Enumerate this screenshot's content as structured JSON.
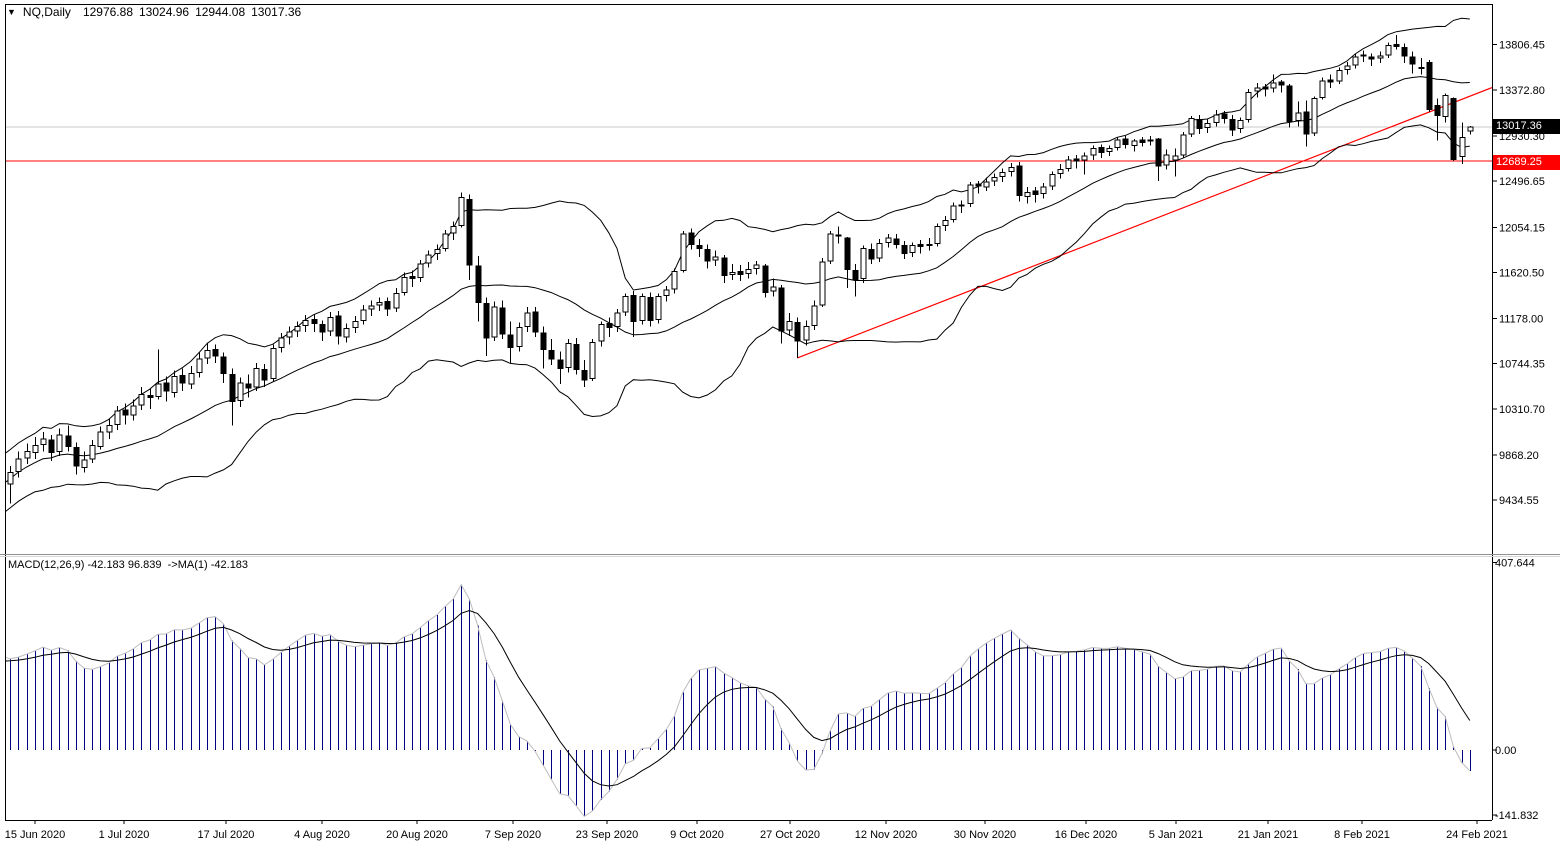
{
  "title": {
    "symbol": "NQ,Daily",
    "open": "12976.88",
    "high": "13024.96",
    "low": "12944.08",
    "close": "13017.36"
  },
  "macd_label": {
    "name": "MACD(12,26,9)",
    "main": "-42.183",
    "signal": "96.839",
    "ma": "->MA(1)",
    "ma_value": "-42.183"
  },
  "price_axis": {
    "current_badge": "13017.36",
    "alert_badge": "12689.25",
    "tick_labels": [
      "13806.45",
      "13372.80",
      "12930.30",
      "12496.65",
      "12054.15",
      "11620.50",
      "11178.00",
      "10744.35",
      "10310.70",
      "9868.20",
      "9434.55"
    ],
    "tick_values": [
      13806.45,
      13372.8,
      12930.3,
      12496.65,
      12054.15,
      11620.5,
      11178.0,
      10744.35,
      10310.7,
      9868.2,
      9434.55
    ]
  },
  "macd_axis": {
    "tick_labels": [
      "407.644",
      "0.00",
      "-141.832"
    ],
    "tick_values": [
      407.644,
      0,
      -141.832
    ]
  },
  "date_axis": {
    "labels": [
      "15 Jun 2020",
      "1 Jul 2020",
      "17 Jul 2020",
      "4 Aug 2020",
      "20 Aug 2020",
      "7 Sep 2020",
      "23 Sep 2020",
      "9 Oct 2020",
      "27 Oct 2020",
      "12 Nov 2020",
      "30 Nov 2020",
      "16 Dec 2020",
      "5 Jan 2021",
      "21 Jan 2021",
      "8 Feb 2021",
      "24 Feb 2021"
    ]
  },
  "colors": {
    "bull": "#ffffff",
    "bear": "#000000",
    "outline": "#000000",
    "band": "#000000",
    "trend": "#ff0000",
    "alert_line": "#ff0000",
    "price_line": "#c8c8c8",
    "hist": "#000080",
    "macd_line": "#bdbdbd",
    "signal_line": "#000000",
    "badge_current_bg": "#000000",
    "badge_alert_bg": "#ff0000"
  },
  "chart_data": {
    "type": "candlestick",
    "symbol": "NQ",
    "timeframe": "Daily",
    "ylim_main": [
      8927,
      14197
    ],
    "ylim_macd": [
      -152.2,
      415.2
    ],
    "grid": "off",
    "overlays": {
      "bollinger": {
        "period": 20,
        "deviation": 2
      },
      "current_price_line": 13017.36,
      "alert_price_line": 12689.25,
      "trendline": {
        "from_bar": 97,
        "from_price": 10800,
        "to_price": 13395
      }
    },
    "macd": {
      "fast": 12,
      "slow": 26,
      "signal_period": 9,
      "display_main": -42.183,
      "display_signal": 96.839
    },
    "ohlc": [
      [
        9200,
        9620,
        9150,
        9580
      ],
      [
        9590,
        9760,
        9400,
        9700
      ],
      [
        9710,
        9900,
        9650,
        9830
      ],
      [
        9840,
        9980,
        9780,
        9900
      ],
      [
        9890,
        10040,
        9830,
        9960
      ],
      [
        9970,
        10090,
        9900,
        10020
      ],
      [
        10010,
        10060,
        9810,
        9890
      ],
      [
        9900,
        10120,
        9860,
        10060
      ],
      [
        10050,
        10150,
        9900,
        9950
      ],
      [
        9940,
        9990,
        9680,
        9760
      ],
      [
        9750,
        9900,
        9700,
        9820
      ],
      [
        9830,
        10010,
        9790,
        9960
      ],
      [
        9950,
        10140,
        9920,
        10090
      ],
      [
        10090,
        10220,
        10020,
        10150
      ],
      [
        10160,
        10340,
        10110,
        10290
      ],
      [
        10300,
        10360,
        10160,
        10250
      ],
      [
        10250,
        10400,
        10200,
        10340
      ],
      [
        10350,
        10520,
        10300,
        10450
      ],
      [
        10440,
        10500,
        10310,
        10420
      ],
      [
        10430,
        10880,
        10400,
        10550
      ],
      [
        10560,
        10620,
        10380,
        10480
      ],
      [
        10470,
        10680,
        10420,
        10620
      ],
      [
        10630,
        10700,
        10480,
        10560
      ],
      [
        10550,
        10720,
        10500,
        10650
      ],
      [
        10660,
        10850,
        10610,
        10790
      ],
      [
        10800,
        10950,
        10740,
        10870
      ],
      [
        10880,
        10930,
        10750,
        10820
      ],
      [
        10810,
        10850,
        10560,
        10650
      ],
      [
        10640,
        10700,
        10150,
        10380
      ],
      [
        10390,
        10610,
        10330,
        10560
      ],
      [
        10550,
        10640,
        10420,
        10510
      ],
      [
        10520,
        10750,
        10480,
        10700
      ],
      [
        10690,
        10740,
        10520,
        10590
      ],
      [
        10600,
        10930,
        10570,
        10890
      ],
      [
        10900,
        11040,
        10850,
        10990
      ],
      [
        11000,
        11100,
        10930,
        11050
      ],
      [
        11060,
        11150,
        11000,
        11100
      ],
      [
        11110,
        11210,
        11050,
        11160
      ],
      [
        11170,
        11220,
        11050,
        11130
      ],
      [
        11120,
        11160,
        10960,
        11050
      ],
      [
        11060,
        11240,
        11010,
        11190
      ],
      [
        11200,
        11250,
        10930,
        11010
      ],
      [
        11000,
        11130,
        10950,
        11080
      ],
      [
        11090,
        11200,
        11040,
        11150
      ],
      [
        11160,
        11310,
        11120,
        11260
      ],
      [
        11270,
        11350,
        11200,
        11300
      ],
      [
        11310,
        11380,
        11250,
        11330
      ],
      [
        11340,
        11380,
        11200,
        11270
      ],
      [
        11280,
        11470,
        11240,
        11420
      ],
      [
        11430,
        11620,
        11400,
        11570
      ],
      [
        11580,
        11640,
        11480,
        11560
      ],
      [
        11570,
        11740,
        11530,
        11700
      ],
      [
        11710,
        11830,
        11670,
        11790
      ],
      [
        11800,
        11890,
        11740,
        11840
      ],
      [
        11850,
        12030,
        11820,
        11990
      ],
      [
        12000,
        12110,
        11930,
        12060
      ],
      [
        12070,
        12390,
        12050,
        12340
      ],
      [
        12320,
        12370,
        11550,
        11690
      ],
      [
        11680,
        11780,
        11150,
        11330
      ],
      [
        11320,
        11380,
        10820,
        10990
      ],
      [
        11000,
        11340,
        10960,
        11290
      ],
      [
        11280,
        11350,
        10980,
        11030
      ],
      [
        11020,
        11150,
        10750,
        10900
      ],
      [
        10910,
        11140,
        10860,
        11090
      ],
      [
        11100,
        11290,
        11050,
        11230
      ],
      [
        11240,
        11290,
        11000,
        11050
      ],
      [
        11040,
        11100,
        10700,
        10880
      ],
      [
        10870,
        10980,
        10730,
        10790
      ],
      [
        10780,
        10860,
        10550,
        10700
      ],
      [
        10710,
        10980,
        10660,
        10940
      ],
      [
        10930,
        10990,
        10640,
        10690
      ],
      [
        10680,
        10780,
        10520,
        10590
      ],
      [
        10600,
        10980,
        10580,
        10950
      ],
      [
        10960,
        11150,
        10910,
        11120
      ],
      [
        11130,
        11190,
        11000,
        11090
      ],
      [
        11100,
        11270,
        11050,
        11230
      ],
      [
        11240,
        11420,
        11200,
        11390
      ],
      [
        11400,
        11440,
        11000,
        11150
      ],
      [
        11160,
        11420,
        11120,
        11390
      ],
      [
        11380,
        11430,
        11100,
        11160
      ],
      [
        11170,
        11420,
        11130,
        11390
      ],
      [
        11400,
        11490,
        11340,
        11450
      ],
      [
        11460,
        11660,
        11420,
        11630
      ],
      [
        11640,
        12020,
        11620,
        11990
      ],
      [
        12000,
        12040,
        11840,
        11890
      ],
      [
        11880,
        11940,
        11770,
        11850
      ],
      [
        11840,
        11890,
        11660,
        11730
      ],
      [
        11740,
        11830,
        11680,
        11770
      ],
      [
        11760,
        11790,
        11520,
        11590
      ],
      [
        11600,
        11700,
        11550,
        11620
      ],
      [
        11630,
        11690,
        11540,
        11600
      ],
      [
        11610,
        11720,
        11560,
        11650
      ],
      [
        11660,
        11730,
        11600,
        11690
      ],
      [
        11680,
        11700,
        11380,
        11430
      ],
      [
        11440,
        11560,
        11390,
        11480
      ],
      [
        11470,
        11500,
        10940,
        11060
      ],
      [
        11070,
        11230,
        11010,
        11150
      ],
      [
        11140,
        11190,
        10800,
        10960
      ],
      [
        10970,
        11160,
        10920,
        11100
      ],
      [
        11110,
        11350,
        11070,
        11300
      ],
      [
        11310,
        11760,
        11290,
        11720
      ],
      [
        11730,
        12020,
        11700,
        11990
      ],
      [
        11970,
        12060,
        11900,
        11980
      ],
      [
        11950,
        11960,
        11470,
        11650
      ],
      [
        11640,
        11700,
        11390,
        11550
      ],
      [
        11560,
        11880,
        11520,
        11850
      ],
      [
        11840,
        11900,
        11700,
        11750
      ],
      [
        11760,
        11940,
        11720,
        11900
      ],
      [
        11910,
        11990,
        11860,
        11950
      ],
      [
        11940,
        11990,
        11850,
        11890
      ],
      [
        11880,
        11920,
        11750,
        11800
      ],
      [
        11810,
        11910,
        11770,
        11880
      ],
      [
        11890,
        11930,
        11800,
        11870
      ],
      [
        11880,
        11950,
        11830,
        11890
      ],
      [
        11900,
        12090,
        11870,
        12060
      ],
      [
        12070,
        12160,
        12020,
        12120
      ],
      [
        12130,
        12290,
        12100,
        12260
      ],
      [
        12260,
        12310,
        12190,
        12270
      ],
      [
        12280,
        12490,
        12250,
        12460
      ],
      [
        12470,
        12500,
        12380,
        12450
      ],
      [
        12440,
        12530,
        12400,
        12490
      ],
      [
        12500,
        12570,
        12450,
        12530
      ],
      [
        12540,
        12620,
        12490,
        12580
      ],
      [
        12590,
        12670,
        12540,
        12630
      ],
      [
        12640,
        12680,
        12300,
        12360
      ],
      [
        12350,
        12440,
        12280,
        12390
      ],
      [
        12400,
        12440,
        12290,
        12370
      ],
      [
        12380,
        12480,
        12330,
        12440
      ],
      [
        12450,
        12590,
        12410,
        12560
      ],
      [
        12570,
        12660,
        12520,
        12610
      ],
      [
        12620,
        12740,
        12590,
        12700
      ],
      [
        12710,
        12750,
        12620,
        12690
      ],
      [
        12700,
        12770,
        12560,
        12740
      ],
      [
        12750,
        12840,
        12700,
        12810
      ],
      [
        12820,
        12850,
        12720,
        12770
      ],
      [
        12780,
        12840,
        12740,
        12810
      ],
      [
        12820,
        12920,
        12790,
        12890
      ],
      [
        12900,
        12930,
        12810,
        12850
      ],
      [
        12840,
        12900,
        12780,
        12880
      ],
      [
        12890,
        12920,
        12830,
        12870
      ],
      [
        12880,
        12930,
        12840,
        12890
      ],
      [
        12900,
        12910,
        12500,
        12640
      ],
      [
        12650,
        12800,
        12610,
        12750
      ],
      [
        12700,
        12810,
        12540,
        12740
      ],
      [
        12750,
        12970,
        12720,
        12940
      ],
      [
        12950,
        13120,
        12920,
        13100
      ],
      [
        13090,
        13130,
        12950,
        13000
      ],
      [
        13010,
        13090,
        12960,
        13050
      ],
      [
        13060,
        13180,
        13020,
        13130
      ],
      [
        13140,
        13170,
        13050,
        13100
      ],
      [
        13090,
        13130,
        12930,
        12990
      ],
      [
        13000,
        13110,
        12960,
        13080
      ],
      [
        13090,
        13380,
        13060,
        13350
      ],
      [
        13360,
        13440,
        13300,
        13390
      ],
      [
        13400,
        13430,
        13310,
        13380
      ],
      [
        13390,
        13520,
        13350,
        13440
      ],
      [
        13450,
        13470,
        13350,
        13420
      ],
      [
        13410,
        13430,
        13010,
        13070
      ],
      [
        13080,
        13260,
        13020,
        13150
      ],
      [
        13160,
        13270,
        12830,
        12950
      ],
      [
        12960,
        13310,
        12930,
        13290
      ],
      [
        13300,
        13490,
        13280,
        13460
      ],
      [
        13470,
        13520,
        13390,
        13450
      ],
      [
        13460,
        13590,
        13430,
        13560
      ],
      [
        13570,
        13640,
        13520,
        13600
      ],
      [
        13610,
        13720,
        13580,
        13690
      ],
      [
        13710,
        13750,
        13640,
        13700
      ],
      [
        13690,
        13720,
        13600,
        13670
      ],
      [
        13680,
        13740,
        13630,
        13700
      ],
      [
        13710,
        13830,
        13680,
        13800
      ],
      [
        13810,
        13900,
        13760,
        13790
      ],
      [
        13780,
        13820,
        13630,
        13700
      ],
      [
        13690,
        13740,
        13530,
        13620
      ],
      [
        13590,
        13680,
        13520,
        13580
      ],
      [
        13634,
        13660,
        13160,
        13183
      ],
      [
        13221,
        13290,
        12886,
        13125
      ],
      [
        13116,
        13340,
        13060,
        13317
      ],
      [
        13289,
        13300,
        12689,
        12704
      ],
      [
        12733,
        13059,
        12660,
        12915
      ],
      [
        12976.88,
        13024.96,
        12944.08,
        13017.36
      ]
    ]
  }
}
